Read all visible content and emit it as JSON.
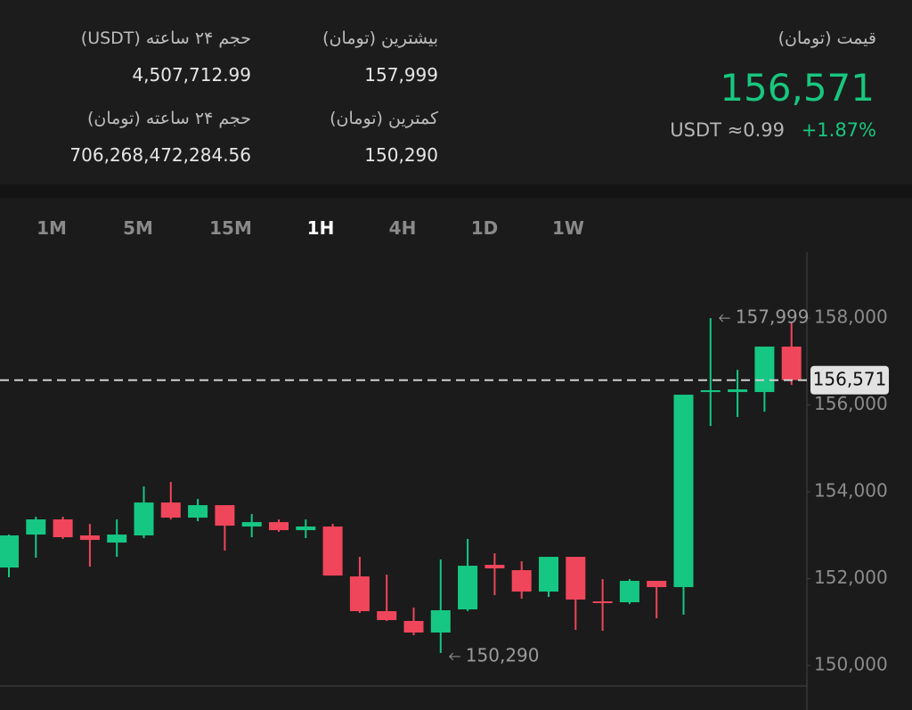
{
  "header": {
    "price_label": "قیمت (تومان)",
    "price": "156,571",
    "usdt": "USDT ≈0.99",
    "change": "+1.87%",
    "high_label": "بیشترین (تومان)",
    "high": "157,999",
    "low_label": "کمترین (تومان)",
    "low": "150,290",
    "vol_usdt_label": "حجم ۲۴ ساعته (USDT)",
    "vol_usdt": "4,507,712.99",
    "vol_toman_label": "حجم ۲۴ ساعته (تومان)",
    "vol_toman": "706,268,472,284.56"
  },
  "tabs": {
    "items": [
      "1M",
      "5M",
      "15M",
      "1H",
      "4H",
      "1D",
      "1W"
    ],
    "selected": "1H"
  },
  "chart_data": {
    "type": "candlestick",
    "up_color": "#16c784",
    "down_color": "#f0465b",
    "open": [
      152257,
      153016,
      153365,
      152996,
      152832,
      152996,
      153754,
      153406,
      153693,
      153201,
      153303,
      153118,
      153201,
      152052,
      151252,
      151027,
      150760,
      151293,
      152319,
      152196,
      151703,
      152503,
      151478,
      151457,
      151950,
      151806,
      156298,
      156298,
      156298,
      157344
    ],
    "high": [
      153016,
      153426,
      153426,
      153262,
      153365,
      154123,
      154226,
      153836,
      153693,
      153488,
      153365,
      153365,
      153262,
      152503,
      152093,
      151334,
      152442,
      152914,
      152585,
      152401,
      152503,
      152503,
      151990,
      151990,
      151950,
      156236,
      157999,
      156810,
      157344,
      157900
    ],
    "low": [
      152032,
      152483,
      152914,
      152278,
      152503,
      152934,
      153365,
      153324,
      152647,
      152955,
      153078,
      152934,
      152072,
      151211,
      151027,
      150698,
      150290,
      151252,
      151621,
      151539,
      151580,
      150822,
      150801,
      151416,
      151088,
      151170,
      155518,
      155723,
      155846,
      156462
    ],
    "close": [
      152996,
      153365,
      152955,
      152893,
      153016,
      153754,
      153406,
      153693,
      153221,
      153303,
      153118,
      153201,
      152072,
      151252,
      151047,
      150760,
      151273,
      152298,
      152237,
      151703,
      152503,
      151519,
      151437,
      151950,
      151806,
      156236,
      156339,
      156359,
      157344,
      156571
    ],
    "ylim": [
      149530,
      159520
    ],
    "yticks": [
      {
        "value": 150000,
        "label": "150,000"
      },
      {
        "value": 152000,
        "label": "152,000"
      },
      {
        "value": 154000,
        "label": "154,000"
      },
      {
        "value": 156000,
        "label": "156,000"
      },
      {
        "value": 158000,
        "label": "158,000"
      }
    ],
    "price_line": {
      "value": 156571,
      "label": "156,571"
    },
    "max_label": {
      "value": 157999,
      "label": "157,999"
    },
    "min_label": {
      "value": 150290,
      "label": "150,290"
    }
  }
}
